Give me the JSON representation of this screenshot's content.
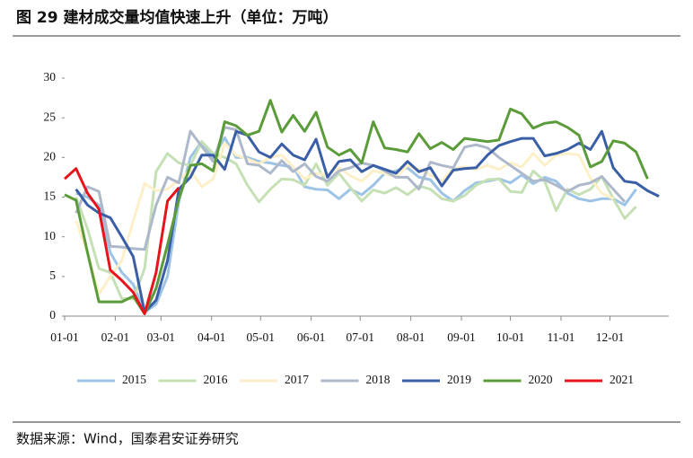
{
  "chart_data": {
    "type": "line",
    "title": "图 29  建材成交量均值快速上升（单位：万吨）",
    "source": "数据来源：Wind，国泰君安证券研究",
    "x": [
      1,
      8,
      15,
      22,
      29,
      36,
      43,
      50,
      57,
      64,
      71,
      78,
      85,
      92,
      99,
      106,
      113,
      120,
      127,
      134,
      141,
      148,
      155,
      162,
      169,
      176,
      183,
      190,
      197,
      204,
      211,
      218,
      225,
      232,
      239,
      246,
      253,
      260,
      267,
      274,
      281,
      288,
      295,
      302,
      309,
      316,
      323,
      330,
      337,
      344,
      351,
      358,
      365
    ],
    "xlim": [
      1,
      371
    ],
    "xticks": [
      {
        "value": 1,
        "label": "01-01"
      },
      {
        "value": 32,
        "label": "02-01"
      },
      {
        "value": 60,
        "label": "03-01"
      },
      {
        "value": 91,
        "label": "04-01"
      },
      {
        "value": 121,
        "label": "05-01"
      },
      {
        "value": 152,
        "label": "06-01"
      },
      {
        "value": 182,
        "label": "07-01"
      },
      {
        "value": 213,
        "label": "08-01"
      },
      {
        "value": 244,
        "label": "09-01"
      },
      {
        "value": 274,
        "label": "10-01"
      },
      {
        "value": 305,
        "label": "11-01"
      },
      {
        "value": 335,
        "label": "12-01"
      }
    ],
    "ylim": [
      0,
      30
    ],
    "yticks": [
      0,
      5,
      10,
      15,
      20,
      25,
      30
    ],
    "grid": false,
    "legend": "bottom",
    "series": [
      {
        "name": "2015",
        "color": "#9dc3e6",
        "values": [
          null,
          15.5,
          15,
          14,
          8,
          5.5,
          4,
          0.5,
          1.5,
          5,
          14.5,
          20,
          22,
          20,
          22.5,
          20,
          20,
          19.5,
          19.3,
          19,
          18.8,
          16.3,
          16,
          15.9,
          14.8,
          16,
          15.3,
          16.5,
          18,
          18.3,
          18.7,
          17.5,
          17.2,
          15.5,
          14.5,
          15.8,
          16.8,
          17,
          17.3,
          16.8,
          17.8,
          16.7,
          17.5,
          17,
          15.5,
          14.8,
          14.5,
          14.8,
          14.8,
          14,
          16,
          null,
          null
        ]
      },
      {
        "name": "2016",
        "color": "#c5e0b4",
        "values": [
          null,
          15,
          11,
          6,
          5.5,
          2.2,
          2.2,
          6,
          18.2,
          20.5,
          19.3,
          19,
          22,
          20.5,
          20,
          19.2,
          16.5,
          14.4,
          16,
          17.3,
          17.2,
          16.5,
          19.2,
          16.5,
          18,
          16.2,
          14.5,
          15.9,
          15.5,
          16.2,
          15.3,
          16.4,
          16,
          14.8,
          14.5,
          15.2,
          16.5,
          17.2,
          17.3,
          15.7,
          15.6,
          18.3,
          17,
          13.3,
          16,
          15.3,
          16,
          17.6,
          14.8,
          12.3,
          13.8,
          null,
          null
        ]
      },
      {
        "name": "2017",
        "color": "#fdefc8",
        "values": [
          null,
          12,
          8,
          2.8,
          5,
          7,
          12,
          16.7,
          15.8,
          16,
          17.2,
          18.4,
          16.3,
          17.3,
          21.8,
          20.3,
          19.8,
          19.2,
          20,
          20.3,
          18.8,
          17.3,
          18,
          17.8,
          18.7,
          17.7,
          17,
          18.3,
          18,
          17.5,
          19,
          18.5,
          17.8,
          17,
          18.6,
          18.8,
          18.5,
          19,
          18.5,
          19.3,
          18.8,
          20.5,
          19,
          20.3,
          20.5,
          20.3,
          17.4,
          15.5,
          14.8,
          null,
          null,
          null,
          null
        ]
      },
      {
        "name": "2018",
        "color": "#adb9ca",
        "values": [
          null,
          13,
          16.3,
          15.7,
          8.8,
          8.7,
          8.5,
          8.4,
          14,
          17.5,
          16.8,
          23.3,
          21.4,
          19.5,
          23.8,
          23.5,
          19.2,
          19,
          18,
          19.6,
          18.2,
          19.2,
          17.6,
          17,
          18.3,
          18.7,
          19.3,
          19,
          18.3,
          17.5,
          17.5,
          16,
          19.4,
          19,
          18.7,
          21.3,
          21.6,
          21.2,
          20,
          19,
          18,
          17,
          17.2,
          16.5,
          15.7,
          16.5,
          16.8,
          17.6,
          16,
          14.4,
          null,
          null,
          null
        ]
      },
      {
        "name": "2019",
        "color": "#3a5fa6",
        "values": [
          null,
          16,
          14,
          13,
          12.4,
          10,
          7.5,
          0.5,
          2,
          7,
          16,
          17.5,
          20.3,
          20.3,
          18.5,
          23.3,
          22.8,
          20.7,
          20,
          21.7,
          20.3,
          19.7,
          22.3,
          17.5,
          19.5,
          19.7,
          18.2,
          19,
          18.5,
          18,
          19.5,
          18.2,
          18.7,
          16.4,
          18.4,
          18.6,
          18.7,
          20.3,
          21.5,
          22,
          22.4,
          22.4,
          20.2,
          20.5,
          21,
          21.8,
          21,
          23.3,
          18.7,
          17,
          16.8,
          15.8,
          15.1
        ]
      },
      {
        "name": "2020",
        "color": "#5b9b3a",
        "values": [
          15.3,
          14.6,
          8,
          1.8,
          1.8,
          1.8,
          2.5,
          0.3,
          3.5,
          9,
          14.8,
          19,
          19.2,
          18.3,
          24.5,
          24,
          22.8,
          23.3,
          27.2,
          23.2,
          25.3,
          23.3,
          25.7,
          21.3,
          20.3,
          21,
          19.3,
          24.5,
          21.2,
          21,
          20.7,
          23,
          21.1,
          21.9,
          21,
          22.4,
          22.2,
          22,
          22.2,
          26.1,
          25.5,
          23.7,
          24.3,
          24.5,
          23.8,
          22.8,
          18.8,
          19.5,
          22.1,
          21.8,
          20.7,
          17.3,
          null
        ]
      },
      {
        "name": "2021",
        "color": "#e8141b",
        "values": [
          17.3,
          18.6,
          15.5,
          13.5,
          5.8,
          4.5,
          3,
          0.3,
          5.5,
          14.5,
          16.2,
          null,
          null,
          null,
          null,
          null,
          null,
          null,
          null,
          null,
          null,
          null,
          null,
          null,
          null,
          null,
          null,
          null,
          null,
          null,
          null,
          null,
          null,
          null,
          null,
          null,
          null,
          null,
          null,
          null,
          null,
          null,
          null,
          null,
          null,
          null,
          null,
          null,
          null,
          null,
          null,
          null,
          null
        ]
      }
    ]
  }
}
